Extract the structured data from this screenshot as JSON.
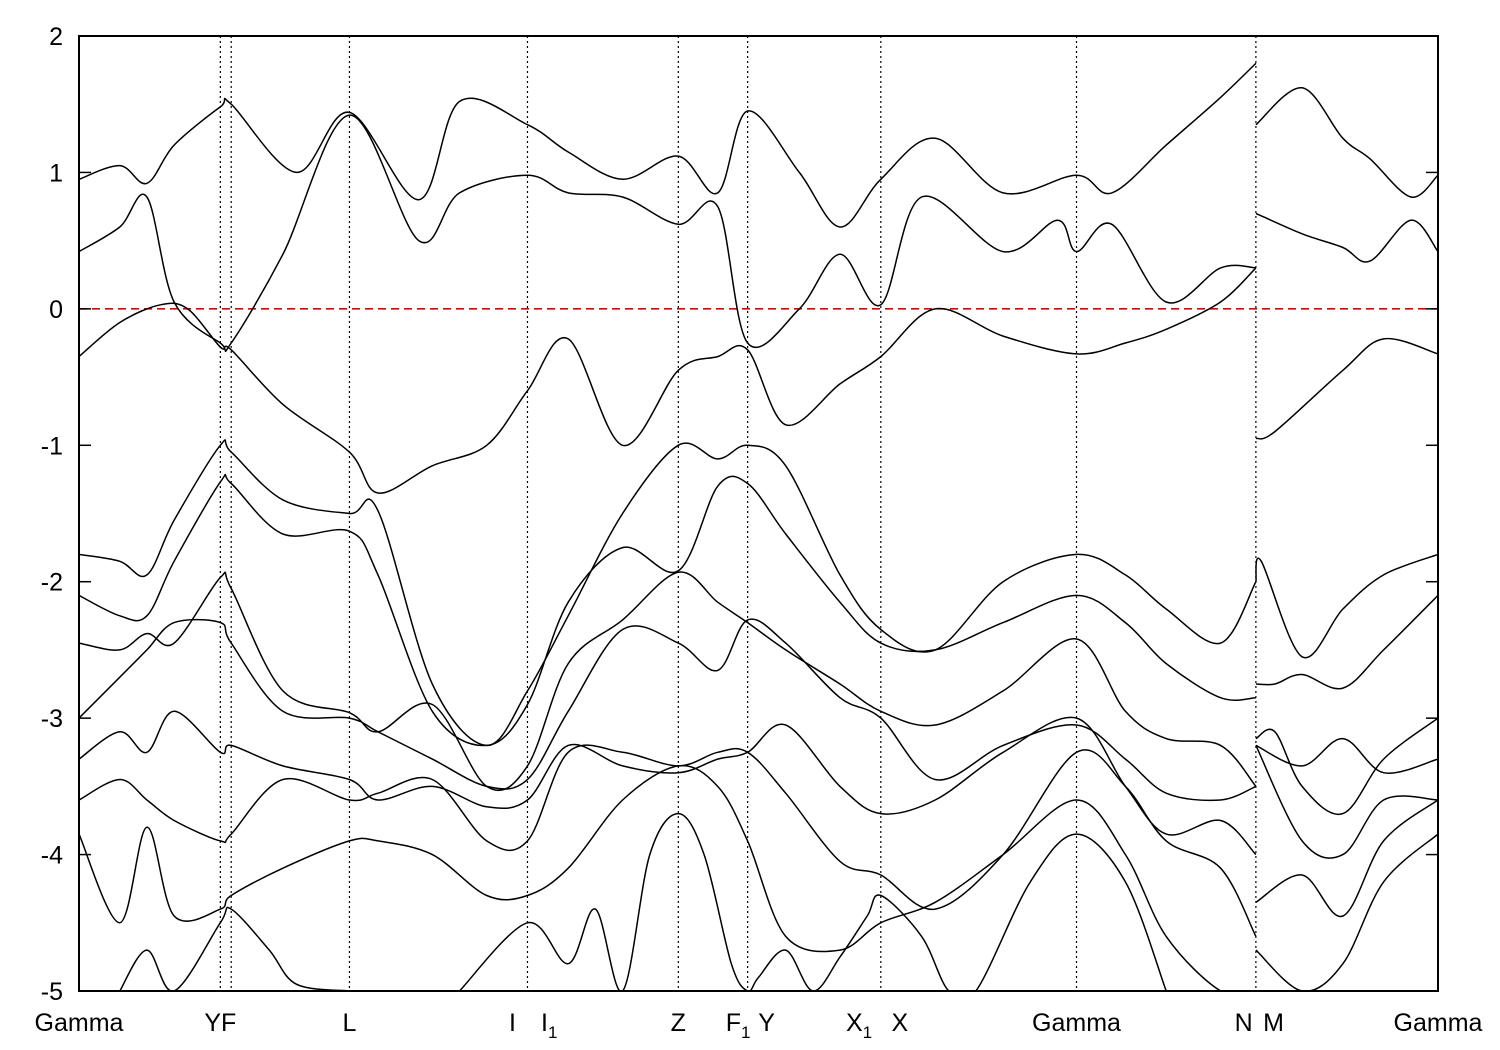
{
  "chart_data": {
    "type": "line",
    "ylim": [
      -5,
      2
    ],
    "y_ticks": [
      "2",
      "1",
      "0",
      "-1",
      "-2",
      "-3",
      "-4",
      "-5"
    ],
    "y_tick_values": [
      2,
      1,
      0,
      -1,
      -2,
      -3,
      -4,
      -5
    ],
    "xlim": [
      0,
      1
    ],
    "fermi_level": {
      "y": 0,
      "color": "#dd0000",
      "style": "dashed"
    },
    "high_symmetry_points": [
      {
        "label": "Gamma",
        "x": 0.0,
        "line": false
      },
      {
        "label": "YF",
        "x": 0.104,
        "line": true,
        "combined": true
      },
      {
        "label": "",
        "x": 0.112,
        "line": true
      },
      {
        "label": "L",
        "x": 0.199,
        "line": true
      },
      {
        "label": "I",
        "x": 0.33,
        "line": true,
        "label_x": 0.319
      },
      {
        "label": "I",
        "sub": "1",
        "x": 0.33,
        "line": false,
        "label_x": 0.346
      },
      {
        "label": "Z",
        "x": 0.441,
        "line": true
      },
      {
        "label": "F",
        "sub": "1",
        "x": 0.492,
        "line": true,
        "label_x": 0.485
      },
      {
        "label": "Y",
        "x": 0.492,
        "line": false,
        "label_x": 0.506
      },
      {
        "label": "X",
        "sub": "1",
        "x": 0.59,
        "line": true,
        "label_x": 0.574
      },
      {
        "label": "X",
        "x": 0.59,
        "line": false,
        "label_x": 0.604
      },
      {
        "label": "Gamma",
        "x": 0.734,
        "line": true
      },
      {
        "label": "N",
        "x": 0.866,
        "line": true,
        "label_x": 0.857
      },
      {
        "label": "M",
        "x": 0.866,
        "line": false,
        "label_x": 0.879
      },
      {
        "label": "Gamma",
        "x": 1.0,
        "line": false
      }
    ],
    "bands": [
      {
        "x": [
          0,
          0.03,
          0.05,
          0.07,
          0.104,
          0.112,
          0.16,
          0.199,
          0.25,
          0.28,
          0.33,
          0.36,
          0.4,
          0.441,
          0.47,
          0.492,
          0.53,
          0.56,
          0.59,
          0.63,
          0.68,
          0.734,
          0.76,
          0.8,
          0.84,
          0.866
        ],
        "y": [
          0.95,
          1.05,
          0.92,
          1.2,
          1.48,
          1.5,
          1.0,
          1.44,
          0.8,
          1.52,
          1.35,
          1.15,
          0.95,
          1.12,
          0.85,
          1.45,
          1.0,
          0.6,
          0.95,
          1.25,
          0.85,
          0.98,
          0.85,
          1.2,
          1.55,
          1.8
        ]
      },
      {
        "x": [
          0.866,
          0.9,
          0.93,
          0.95,
          0.98,
          1.0
        ],
        "y": [
          1.35,
          1.62,
          1.25,
          1.1,
          0.82,
          0.98
        ]
      },
      {
        "x": [
          0,
          0.03,
          0.05,
          0.07,
          0.104,
          0.112,
          0.15,
          0.199,
          0.25,
          0.28,
          0.33,
          0.36,
          0.4,
          0.441,
          0.47,
          0.492,
          0.53,
          0.56,
          0.59,
          0.62,
          0.68,
          0.72,
          0.734,
          0.76,
          0.8,
          0.84,
          0.866
        ],
        "y": [
          0.42,
          0.6,
          0.82,
          0.05,
          -0.25,
          -0.25,
          0.4,
          1.42,
          0.5,
          0.85,
          0.98,
          0.85,
          0.82,
          0.62,
          0.75,
          -0.25,
          0.0,
          0.4,
          0.03,
          0.82,
          0.42,
          0.65,
          0.42,
          0.62,
          0.05,
          0.3,
          0.3
        ]
      },
      {
        "x": [
          0.866,
          0.9,
          0.93,
          0.95,
          0.98,
          1.0
        ],
        "y": [
          0.7,
          0.55,
          0.45,
          0.35,
          0.65,
          0.42
        ]
      },
      {
        "x": [
          0,
          0.03,
          0.06,
          0.08,
          0.104,
          0.112,
          0.15,
          0.199,
          0.22,
          0.26,
          0.3,
          0.33,
          0.36,
          0.4,
          0.441,
          0.47,
          0.492,
          0.52,
          0.56,
          0.59,
          0.63,
          0.68,
          0.734,
          0.77,
          0.8,
          0.84,
          0.866
        ],
        "y": [
          -0.35,
          -0.1,
          0.03,
          0.0,
          -0.28,
          -0.3,
          -0.7,
          -1.05,
          -1.35,
          -1.15,
          -1.0,
          -0.6,
          -0.22,
          -1.0,
          -0.45,
          -0.35,
          -0.3,
          -0.85,
          -0.55,
          -0.35,
          0.0,
          -0.2,
          -0.33,
          -0.25,
          -0.15,
          0.05,
          0.3
        ]
      },
      {
        "x": [
          0.866,
          0.88,
          0.93,
          0.96,
          1.0
        ],
        "y": [
          -0.95,
          -0.9,
          -0.45,
          -0.22,
          -0.33
        ]
      },
      {
        "x": [
          0,
          0.03,
          0.05,
          0.07,
          0.104,
          0.112,
          0.15,
          0.199,
          0.22,
          0.26,
          0.3,
          0.33,
          0.36,
          0.4,
          0.441,
          0.47,
          0.492,
          0.52,
          0.56,
          0.59,
          0.63,
          0.68,
          0.734,
          0.77,
          0.8,
          0.84,
          0.866
        ],
        "y": [
          -1.8,
          -1.85,
          -1.95,
          -1.55,
          -1.0,
          -1.05,
          -1.4,
          -1.5,
          -1.48,
          -2.75,
          -3.2,
          -2.8,
          -2.25,
          -1.5,
          -1.0,
          -1.1,
          -1.0,
          -1.15,
          -1.95,
          -2.35,
          -2.5,
          -2.0,
          -1.8,
          -1.95,
          -2.2,
          -2.45,
          -2.0
        ]
      },
      {
        "x": [
          0.866,
          0.87,
          0.9,
          0.93,
          0.96,
          1.0
        ],
        "y": [
          -2.0,
          -1.85,
          -2.55,
          -2.2,
          -1.95,
          -1.8
        ]
      },
      {
        "x": [
          0,
          0.03,
          0.05,
          0.07,
          0.104,
          0.112,
          0.15,
          0.199,
          0.22,
          0.26,
          0.3,
          0.33,
          0.36,
          0.4,
          0.441,
          0.47,
          0.492,
          0.52,
          0.56,
          0.59,
          0.63,
          0.68,
          0.734,
          0.77,
          0.8,
          0.84,
          0.866
        ],
        "y": [
          -2.1,
          -2.25,
          -2.25,
          -1.85,
          -1.27,
          -1.28,
          -1.65,
          -1.63,
          -1.95,
          -2.95,
          -3.2,
          -2.9,
          -2.15,
          -1.75,
          -1.92,
          -1.3,
          -1.28,
          -1.65,
          -2.15,
          -2.45,
          -2.5,
          -2.3,
          -2.1,
          -2.3,
          -2.6,
          -2.85,
          -2.85
        ]
      },
      {
        "x": [
          0.866,
          0.88,
          0.9,
          0.93,
          0.96,
          1.0
        ],
        "y": [
          -2.75,
          -2.75,
          -2.68,
          -2.78,
          -2.5,
          -2.1
        ]
      },
      {
        "x": [
          0,
          0.03,
          0.05,
          0.07,
          0.104,
          0.112,
          0.15,
          0.199,
          0.22,
          0.26,
          0.3,
          0.33,
          0.36,
          0.4,
          0.441,
          0.47,
          0.492,
          0.52,
          0.56,
          0.59,
          0.63,
          0.68,
          0.734,
          0.77,
          0.8,
          0.84,
          0.866
        ],
        "y": [
          -2.45,
          -2.5,
          -2.38,
          -2.45,
          -1.97,
          -2.05,
          -2.8,
          -2.96,
          -3.1,
          -2.9,
          -3.5,
          -3.35,
          -2.6,
          -2.28,
          -1.93,
          -2.15,
          -2.3,
          -2.5,
          -2.75,
          -2.95,
          -3.05,
          -2.8,
          -2.42,
          -2.95,
          -3.15,
          -3.2,
          -3.5
        ]
      },
      {
        "x": [
          0.866,
          0.88,
          0.9,
          0.93,
          0.96,
          1.0
        ],
        "y": [
          -3.15,
          -3.1,
          -3.5,
          -3.7,
          -3.3,
          -3.0
        ]
      },
      {
        "x": [
          0,
          0.03,
          0.05,
          0.07,
          0.104,
          0.112,
          0.15,
          0.199,
          0.22,
          0.26,
          0.3,
          0.33,
          0.36,
          0.4,
          0.441,
          0.47,
          0.492,
          0.52,
          0.56,
          0.59,
          0.63,
          0.68,
          0.734,
          0.77,
          0.8,
          0.84,
          0.866
        ],
        "y": [
          -3.0,
          -2.7,
          -2.5,
          -2.3,
          -2.3,
          -2.45,
          -2.95,
          -3.0,
          -3.1,
          -3.3,
          -3.5,
          -3.45,
          -2.95,
          -2.35,
          -2.45,
          -2.65,
          -2.28,
          -2.45,
          -2.85,
          -3.0,
          -3.45,
          -3.2,
          -3.05,
          -3.3,
          -3.55,
          -3.6,
          -3.5
        ]
      },
      {
        "x": [
          0.866,
          0.9,
          0.93,
          0.96,
          1.0
        ],
        "y": [
          -3.2,
          -3.35,
          -3.15,
          -3.4,
          -3.3
        ]
      },
      {
        "x": [
          0,
          0.03,
          0.05,
          0.07,
          0.104,
          0.112,
          0.15,
          0.199,
          0.22,
          0.26,
          0.3,
          0.33,
          0.36,
          0.4,
          0.441,
          0.47,
          0.492,
          0.52,
          0.56,
          0.59,
          0.63,
          0.68,
          0.734,
          0.77,
          0.8,
          0.84,
          0.866
        ],
        "y": [
          -3.3,
          -3.1,
          -3.25,
          -2.95,
          -3.25,
          -3.2,
          -3.35,
          -3.45,
          -3.6,
          -3.5,
          -3.65,
          -3.6,
          -3.2,
          -3.35,
          -3.4,
          -3.3,
          -3.25,
          -3.05,
          -3.5,
          -3.7,
          -3.6,
          -3.25,
          -3.0,
          -3.5,
          -3.85,
          -3.75,
          -4.0
        ]
      },
      {
        "x": [
          0.866,
          0.9,
          0.93,
          0.96,
          1.0
        ],
        "y": [
          -3.2,
          -3.9,
          -4.0,
          -3.6,
          -3.6
        ]
      },
      {
        "x": [
          0,
          0.03,
          0.05,
          0.07,
          0.104,
          0.112,
          0.15,
          0.199,
          0.22,
          0.26,
          0.3,
          0.33,
          0.36,
          0.4,
          0.441,
          0.47,
          0.492,
          0.52,
          0.56,
          0.59,
          0.63,
          0.68,
          0.734,
          0.77,
          0.8,
          0.84,
          0.866
        ],
        "y": [
          -3.6,
          -3.45,
          -3.6,
          -3.75,
          -3.9,
          -3.85,
          -3.45,
          -3.6,
          -3.55,
          -3.45,
          -3.9,
          -3.9,
          -3.25,
          -3.25,
          -3.35,
          -3.25,
          -3.25,
          -3.55,
          -4.05,
          -4.15,
          -4.4,
          -4.0,
          -3.25,
          -3.5,
          -3.9,
          -4.1,
          -4.6
        ]
      },
      {
        "x": [
          0.866,
          0.9,
          0.93,
          0.96,
          1.0
        ],
        "y": [
          -4.35,
          -4.15,
          -4.45,
          -3.9,
          -3.6
        ]
      },
      {
        "x": [
          0,
          0.03,
          0.05,
          0.07,
          0.104,
          0.112,
          0.15,
          0.199,
          0.22,
          0.26,
          0.3,
          0.33,
          0.36,
          0.4,
          0.441,
          0.47,
          0.492,
          0.52,
          0.56,
          0.59,
          0.63,
          0.68,
          0.734,
          0.77,
          0.8,
          0.84,
          0.866
        ],
        "y": [
          -3.85,
          -4.5,
          -3.8,
          -4.45,
          -4.4,
          -4.3,
          -4.1,
          -3.9,
          -3.9,
          -4.0,
          -4.3,
          -4.3,
          -4.1,
          -3.6,
          -3.35,
          -3.5,
          -3.9,
          -4.6,
          -4.7,
          -4.5,
          -4.35,
          -4.0,
          -3.6,
          -4.0,
          -4.6,
          -5.0,
          -5.0
        ]
      },
      {
        "x": [
          0.866,
          0.9,
          0.93,
          0.96,
          1.0
        ],
        "y": [
          -4.7,
          -5.0,
          -4.8,
          -4.2,
          -3.85
        ]
      },
      {
        "x": [
          0.28,
          0.33,
          0.36,
          0.38,
          0.4,
          0.42,
          0.441,
          0.46,
          0.48,
          0.492,
          0.5,
          0.52,
          0.54,
          0.56,
          0.58,
          0.59,
          0.62,
          0.64,
          0.66,
          0.7,
          0.734,
          0.77,
          0.8
        ],
        "y": [
          -5.0,
          -4.5,
          -4.8,
          -4.4,
          -5.0,
          -4.0,
          -3.7,
          -4.0,
          -4.8,
          -5.0,
          -4.9,
          -4.7,
          -5.0,
          -4.75,
          -4.45,
          -4.3,
          -4.6,
          -5.0,
          -5.0,
          -4.2,
          -3.85,
          -4.2,
          -5.0
        ]
      },
      {
        "x": [
          0.03,
          0.05,
          0.07,
          0.104,
          0.112,
          0.14,
          0.16,
          0.199
        ],
        "y": [
          -5.0,
          -4.7,
          -5.0,
          -4.5,
          -4.4,
          -4.7,
          -4.95,
          -5.0
        ]
      }
    ]
  }
}
